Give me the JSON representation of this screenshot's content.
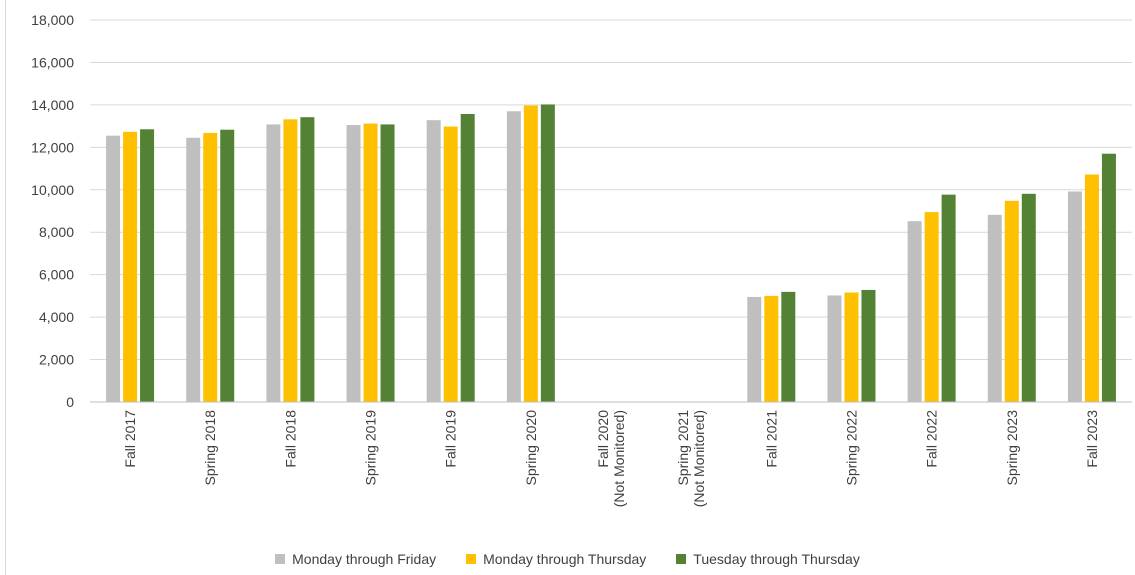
{
  "chart_data": {
    "type": "bar",
    "title": "",
    "xlabel": "",
    "ylabel": "",
    "ylim": [
      0,
      18000
    ],
    "yticks": [
      0,
      2000,
      4000,
      6000,
      8000,
      10000,
      12000,
      14000,
      16000,
      18000
    ],
    "ytick_labels": [
      "0",
      "2,000",
      "4,000",
      "6,000",
      "8,000",
      "10,000",
      "12,000",
      "14,000",
      "16,000",
      "18,000"
    ],
    "grid": true,
    "legend_position": "bottom",
    "categories": [
      [
        "Fall 2017"
      ],
      [
        "Spring 2018"
      ],
      [
        "Fall 2018"
      ],
      [
        "Spring 2019"
      ],
      [
        "Fall 2019"
      ],
      [
        "Spring 2020"
      ],
      [
        "Fall 2020",
        "(Not Monitored)"
      ],
      [
        "Spring 2021",
        "(Not Monitored)"
      ],
      [
        "Fall 2021"
      ],
      [
        "Spring 2022"
      ],
      [
        "Fall 2022"
      ],
      [
        "Spring 2023"
      ],
      [
        "Fall 2023"
      ]
    ],
    "series": [
      {
        "name": "Monday through Friday",
        "color": "#bfbfbf",
        "values": [
          12550,
          12450,
          13080,
          13050,
          13280,
          13700,
          null,
          null,
          4950,
          5020,
          8520,
          8820,
          9920
        ]
      },
      {
        "name": "Monday through Thursday",
        "color": "#ffc000",
        "values": [
          12730,
          12680,
          13320,
          13120,
          12980,
          13970,
          null,
          null,
          5000,
          5160,
          8950,
          9480,
          10720
        ]
      },
      {
        "name": "Tuesday through Thursday",
        "color": "#548235",
        "values": [
          12850,
          12830,
          13420,
          13080,
          13570,
          14020,
          null,
          null,
          5190,
          5280,
          9770,
          9810,
          11700
        ]
      }
    ]
  }
}
